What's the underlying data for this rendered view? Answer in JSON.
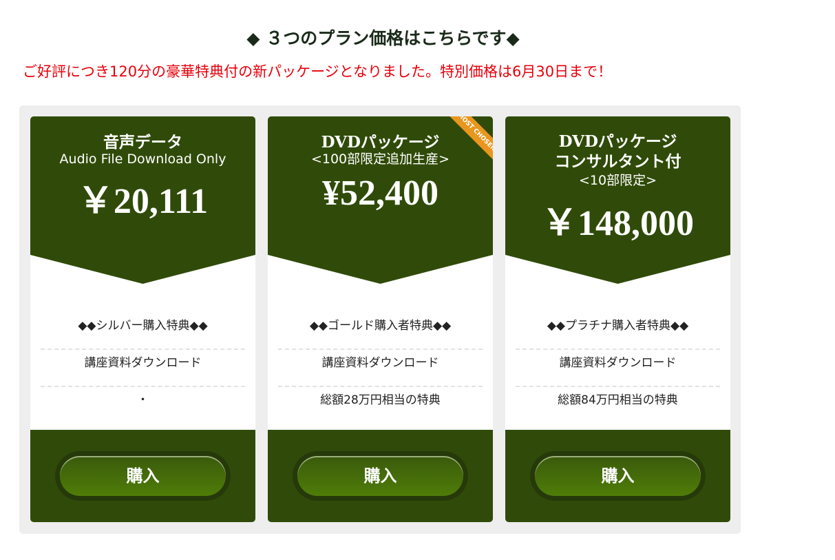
{
  "heading": "◆ ３つのプラン価格はこちらです◆",
  "subheading": "ご好評につき120分の豪華特典付の新パッケージとなりました。特別価格は6月30日まで！",
  "colors": {
    "card_green": "#304b09",
    "ribbon": "#e8961e",
    "subheading": "#e8000b"
  },
  "plans": [
    {
      "title": "音声データ",
      "subtitle": "Audio File Download Only",
      "price": "￥20,111",
      "items": [
        "◆◆シルバー購入特典◆◆",
        "講座資料ダウンロード",
        "・"
      ],
      "button": "購入"
    },
    {
      "title": "DVDパッケージ",
      "subtitle": "<100部限定追加生産>",
      "price": "¥52,400",
      "ribbon": "MOST CHOSEN",
      "items": [
        "◆◆ゴールド購入者特典◆◆",
        "講座資料ダウンロード",
        "総額28万円相当の特典"
      ],
      "button": "購入"
    },
    {
      "title": "DVDパッケージ",
      "title2": "コンサルタント付",
      "subtitle": "<10部限定>",
      "price": "￥148,000",
      "items": [
        "◆◆プラチナ購入者特典◆◆",
        "講座資料ダウンロード",
        "総額84万円相当の特典"
      ],
      "button": "購入"
    }
  ]
}
